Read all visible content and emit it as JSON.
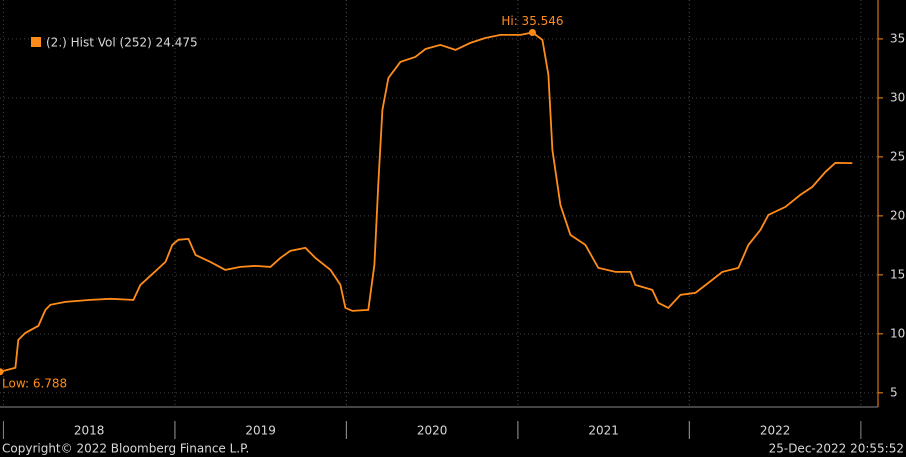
{
  "chart_data": {
    "type": "line",
    "series": [
      {
        "name": "(2.) Hist Vol (252) 24.475",
        "color": "#ff8c1a",
        "x": [
          2017.98,
          2018.07,
          2018.087,
          2018.128,
          2018.204,
          2018.245,
          2018.274,
          2018.362,
          2018.507,
          2018.624,
          2018.758,
          2018.799,
          2018.857,
          2018.945,
          2018.985,
          2019.02,
          2019.079,
          2019.12,
          2019.207,
          2019.294,
          2019.382,
          2019.469,
          2019.557,
          2019.615,
          2019.673,
          2019.761,
          2019.819,
          2019.907,
          2019.965,
          2019.994,
          2020.035,
          2020.128,
          2020.163,
          2020.187,
          2020.21,
          2020.245,
          2020.315,
          2020.402,
          2020.461,
          2020.548,
          2020.636,
          2020.723,
          2020.81,
          2020.898,
          2021.015,
          2021.085,
          2021.143,
          2021.178,
          2021.201,
          2021.248,
          2021.306,
          2021.394,
          2021.469,
          2021.569,
          2021.656,
          2021.685,
          2021.784,
          2021.819,
          2021.878,
          2021.948,
          2022.035,
          2022.111,
          2022.192,
          2022.286,
          2022.344,
          2022.414,
          2022.461,
          2022.56,
          2022.647,
          2022.717,
          2022.793,
          2022.851,
          2022.95
        ],
        "values": [
          6.788,
          7.12,
          9.49,
          10.08,
          10.68,
          12.03,
          12.46,
          12.71,
          12.88,
          12.97,
          12.88,
          14.15,
          14.92,
          16.1,
          17.54,
          17.97,
          18.05,
          16.69,
          16.1,
          15.42,
          15.68,
          15.76,
          15.68,
          16.44,
          17.03,
          17.29,
          16.44,
          15.42,
          14.15,
          12.2,
          11.95,
          12.03,
          15.85,
          23.05,
          28.98,
          31.69,
          33.05,
          33.47,
          34.15,
          34.49,
          34.07,
          34.66,
          35.08,
          35.34,
          35.34,
          35.546,
          34.92,
          31.95,
          25.59,
          20.93,
          18.39,
          17.54,
          15.59,
          15.25,
          15.25,
          14.15,
          13.73,
          12.63,
          12.2,
          13.31,
          13.47,
          14.32,
          15.25,
          15.59,
          17.54,
          18.81,
          20.08,
          20.76,
          21.78,
          22.46,
          23.73,
          24.49,
          24.475
        ]
      }
    ],
    "annotations": [
      {
        "text": "Hi: 35.546"
      },
      {
        "text": "Low: 6.788"
      }
    ],
    "xlim": [
      2017.98,
      2023.1
    ],
    "xticks": [
      {
        "value": 2018.5,
        "label": "2018"
      },
      {
        "value": 2019.5,
        "label": "2019"
      },
      {
        "value": 2020.5,
        "label": "2020"
      },
      {
        "value": 2021.5,
        "label": "2021"
      },
      {
        "value": 2022.5,
        "label": "2022"
      }
    ],
    "ylim": [
      3.8,
      38.3
    ],
    "yticks": [
      5,
      10,
      15,
      20,
      25,
      30,
      35
    ],
    "grid": true,
    "legend": "top-left",
    "footer_left": "Copyright© 2022 Bloomberg Finance L.P.",
    "footer_right": "25-Dec-2022 20:55:52"
  }
}
